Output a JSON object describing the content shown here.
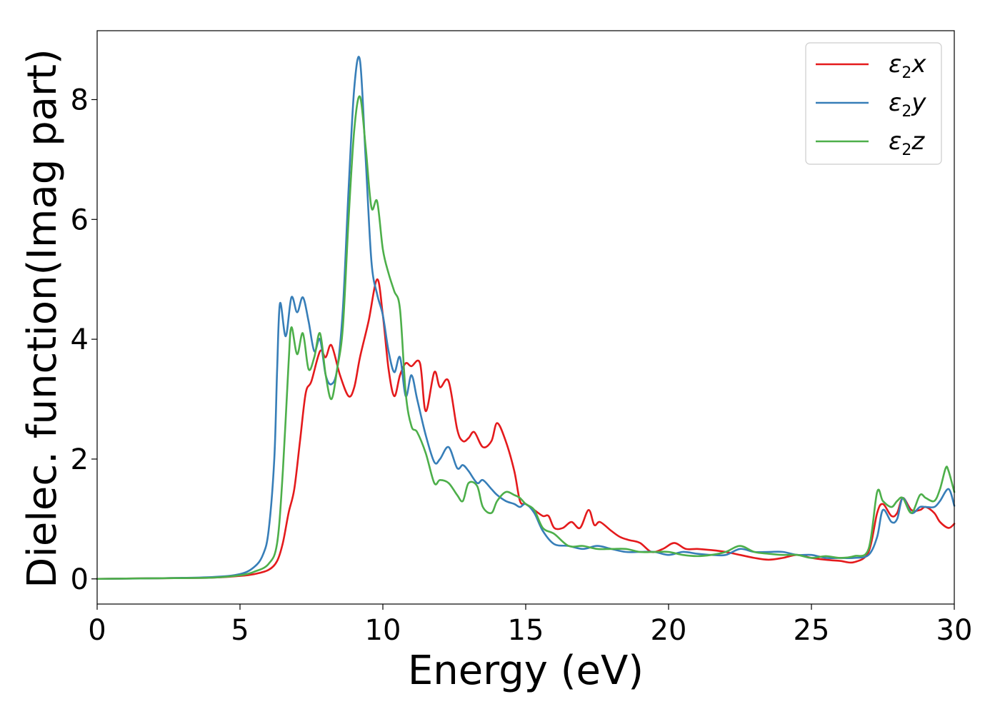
{
  "chart_data": {
    "type": "line",
    "xlabel": "Energy (eV)",
    "ylabel": "Dielec. function(Imag part)",
    "xlim": [
      0,
      30
    ],
    "ylim": [
      -0.42,
      9.15
    ],
    "xticks": [
      "0",
      "5",
      "10",
      "15",
      "20",
      "25",
      "30"
    ],
    "yticks": [
      "0",
      "2",
      "4",
      "6",
      "8"
    ],
    "grid": false,
    "legend_position": "top-right",
    "series": [
      {
        "name": "ε2x",
        "legend_main": "ε",
        "legend_sub": "2",
        "legend_suffix": "x",
        "color": "#e41a1c",
        "x": [
          0,
          2,
          4,
          5,
          5.5,
          6.0,
          6.3,
          6.5,
          6.7,
          6.9,
          7.1,
          7.3,
          7.5,
          7.8,
          8.0,
          8.2,
          8.5,
          8.8,
          9.0,
          9.2,
          9.5,
          9.8,
          10.0,
          10.2,
          10.4,
          10.6,
          10.8,
          11.0,
          11.3,
          11.5,
          11.8,
          12.0,
          12.3,
          12.6,
          12.8,
          13.0,
          13.2,
          13.5,
          13.8,
          14.0,
          14.3,
          14.6,
          14.8,
          15.0,
          15.3,
          15.6,
          15.8,
          16.0,
          16.3,
          16.6,
          16.9,
          17.2,
          17.4,
          17.6,
          18.0,
          18.3,
          18.6,
          19.0,
          19.4,
          19.8,
          20.2,
          20.6,
          21.0,
          21.5,
          22.0,
          22.5,
          23.0,
          23.5,
          24.0,
          24.5,
          25.0,
          25.5,
          26.0,
          26.5,
          27.0,
          27.3,
          27.5,
          27.8,
          28.0,
          28.2,
          28.5,
          28.8,
          29.0,
          29.3,
          29.5,
          29.8,
          30.0
        ],
        "y": [
          0,
          0.01,
          0.02,
          0.05,
          0.08,
          0.15,
          0.3,
          0.6,
          1.1,
          1.5,
          2.3,
          3.1,
          3.3,
          3.8,
          3.7,
          3.9,
          3.4,
          3.05,
          3.2,
          3.7,
          4.3,
          5.0,
          4.4,
          3.5,
          3.05,
          3.4,
          3.6,
          3.55,
          3.6,
          2.8,
          3.45,
          3.2,
          3.3,
          2.5,
          2.3,
          2.35,
          2.45,
          2.2,
          2.3,
          2.6,
          2.3,
          1.8,
          1.3,
          1.25,
          1.15,
          1.05,
          1.05,
          0.85,
          0.85,
          0.95,
          0.85,
          1.15,
          0.9,
          0.95,
          0.8,
          0.7,
          0.65,
          0.6,
          0.45,
          0.5,
          0.6,
          0.5,
          0.5,
          0.48,
          0.45,
          0.4,
          0.35,
          0.32,
          0.35,
          0.4,
          0.35,
          0.32,
          0.3,
          0.28,
          0.45,
          1.1,
          1.25,
          1.05,
          1.1,
          1.35,
          1.15,
          1.15,
          1.2,
          1.1,
          0.95,
          0.85,
          0.92
        ]
      },
      {
        "name": "ε2y",
        "legend_main": "ε",
        "legend_sub": "2",
        "legend_suffix": "y",
        "color": "#377eb8",
        "x": [
          0,
          2,
          4,
          5,
          5.5,
          5.8,
          6.0,
          6.2,
          6.3,
          6.4,
          6.6,
          6.8,
          7.0,
          7.2,
          7.4,
          7.6,
          7.8,
          8.0,
          8.2,
          8.4,
          8.6,
          8.8,
          9.0,
          9.2,
          9.4,
          9.6,
          9.8,
          10.0,
          10.2,
          10.4,
          10.6,
          10.8,
          11.0,
          11.2,
          11.5,
          11.8,
          12.0,
          12.3,
          12.6,
          12.8,
          13.0,
          13.3,
          13.5,
          13.8,
          14.0,
          14.3,
          14.6,
          14.8,
          15.0,
          15.3,
          15.6,
          16.0,
          16.5,
          17.0,
          17.5,
          18.0,
          18.5,
          19.0,
          19.5,
          20.0,
          20.5,
          21.0,
          21.5,
          22.0,
          22.5,
          23.0,
          23.5,
          24.0,
          24.5,
          25.0,
          25.5,
          26.0,
          26.5,
          27.0,
          27.3,
          27.5,
          27.8,
          28.0,
          28.2,
          28.5,
          28.8,
          29.0,
          29.3,
          29.5,
          29.8,
          30.0
        ],
        "y": [
          0,
          0.01,
          0.03,
          0.08,
          0.2,
          0.4,
          0.8,
          2.0,
          3.5,
          4.6,
          4.05,
          4.7,
          4.45,
          4.7,
          4.3,
          3.8,
          4.0,
          3.4,
          3.25,
          3.5,
          4.5,
          6.5,
          8.2,
          8.65,
          7.0,
          5.3,
          4.75,
          4.4,
          3.8,
          3.45,
          3.7,
          3.05,
          3.4,
          3.0,
          2.4,
          1.95,
          2.0,
          2.2,
          1.85,
          1.9,
          1.8,
          1.6,
          1.65,
          1.5,
          1.4,
          1.3,
          1.25,
          1.2,
          1.25,
          1.1,
          0.8,
          0.58,
          0.55,
          0.5,
          0.55,
          0.5,
          0.45,
          0.45,
          0.45,
          0.4,
          0.45,
          0.42,
          0.4,
          0.4,
          0.5,
          0.45,
          0.45,
          0.45,
          0.4,
          0.4,
          0.35,
          0.35,
          0.35,
          0.4,
          0.7,
          1.15,
          0.95,
          1.0,
          1.35,
          1.1,
          1.2,
          1.2,
          1.2,
          1.3,
          1.5,
          1.22
        ]
      },
      {
        "name": "ε2z",
        "legend_main": "ε",
        "legend_sub": "2",
        "legend_suffix": "z",
        "color": "#4daf4a",
        "x": [
          0,
          2,
          4,
          5,
          5.5,
          6.0,
          6.3,
          6.5,
          6.7,
          6.8,
          7.0,
          7.2,
          7.4,
          7.6,
          7.8,
          8.0,
          8.2,
          8.4,
          8.6,
          8.8,
          9.0,
          9.2,
          9.4,
          9.6,
          9.8,
          10.0,
          10.2,
          10.4,
          10.6,
          10.8,
          11.0,
          11.2,
          11.5,
          11.8,
          12.0,
          12.3,
          12.6,
          12.8,
          13.0,
          13.3,
          13.5,
          13.8,
          14.0,
          14.3,
          14.6,
          14.8,
          15.0,
          15.3,
          15.6,
          16.0,
          16.5,
          17.0,
          17.5,
          18.0,
          18.5,
          19.0,
          19.5,
          20.0,
          20.5,
          21.0,
          21.5,
          22.0,
          22.5,
          23.0,
          23.5,
          24.0,
          24.5,
          25.0,
          25.5,
          26.0,
          26.5,
          27.0,
          27.3,
          27.5,
          27.8,
          28.0,
          28.2,
          28.5,
          28.8,
          29.0,
          29.3,
          29.5,
          29.7,
          29.8,
          30.0
        ],
        "y": [
          0,
          0.01,
          0.02,
          0.06,
          0.12,
          0.25,
          0.6,
          1.8,
          3.6,
          4.2,
          3.75,
          4.1,
          3.5,
          3.7,
          4.1,
          3.4,
          3.0,
          3.5,
          4.2,
          6.0,
          7.5,
          8.05,
          7.2,
          6.2,
          6.3,
          5.5,
          5.1,
          4.8,
          4.5,
          3.1,
          2.55,
          2.45,
          2.1,
          1.6,
          1.65,
          1.6,
          1.4,
          1.3,
          1.6,
          1.55,
          1.2,
          1.1,
          1.3,
          1.45,
          1.4,
          1.35,
          1.25,
          1.15,
          0.85,
          0.75,
          0.55,
          0.55,
          0.5,
          0.5,
          0.5,
          0.45,
          0.45,
          0.45,
          0.4,
          0.38,
          0.4,
          0.45,
          0.55,
          0.45,
          0.42,
          0.4,
          0.4,
          0.35,
          0.38,
          0.35,
          0.38,
          0.5,
          1.45,
          1.3,
          1.2,
          1.3,
          1.35,
          1.1,
          1.4,
          1.35,
          1.3,
          1.5,
          1.85,
          1.8,
          1.45
        ]
      }
    ]
  }
}
